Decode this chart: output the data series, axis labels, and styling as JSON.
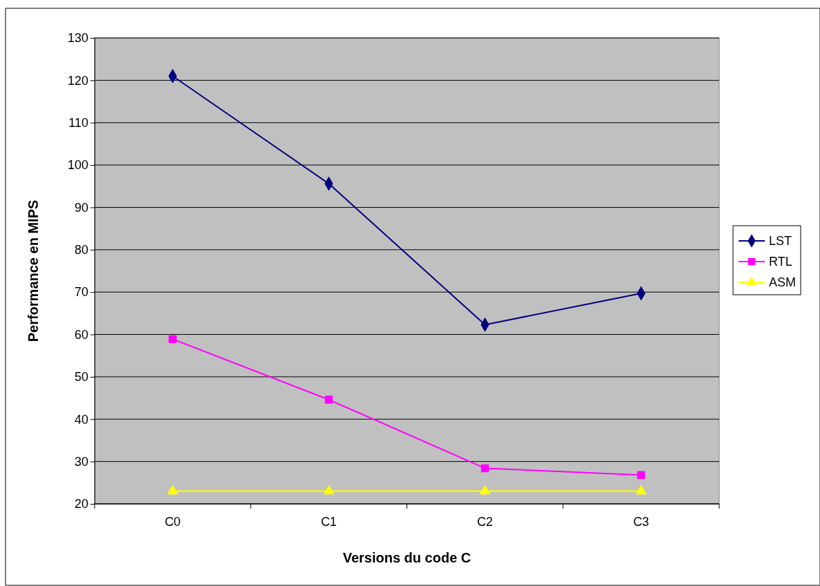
{
  "chart_data": {
    "type": "line",
    "xlabel": "Versions du code C",
    "ylabel": "Performance en MIPS",
    "categories": [
      "C0",
      "C1",
      "C2",
      "C3"
    ],
    "series": [
      {
        "name": "LST",
        "color": "#000080",
        "marker": "diamond",
        "values": [
          121,
          95.6,
          62.3,
          69.7
        ]
      },
      {
        "name": "RTL",
        "color": "#ff00ff",
        "marker": "square",
        "values": [
          58.9,
          44.6,
          28.4,
          26.8
        ]
      },
      {
        "name": "ASM",
        "color": "#ffff00",
        "marker": "triangle",
        "values": [
          23,
          23,
          23,
          23
        ]
      }
    ],
    "ylim": [
      20,
      130
    ],
    "yticks": [
      20,
      30,
      40,
      50,
      60,
      70,
      80,
      90,
      100,
      110,
      120,
      130
    ],
    "grid": "y",
    "legend": "right"
  }
}
